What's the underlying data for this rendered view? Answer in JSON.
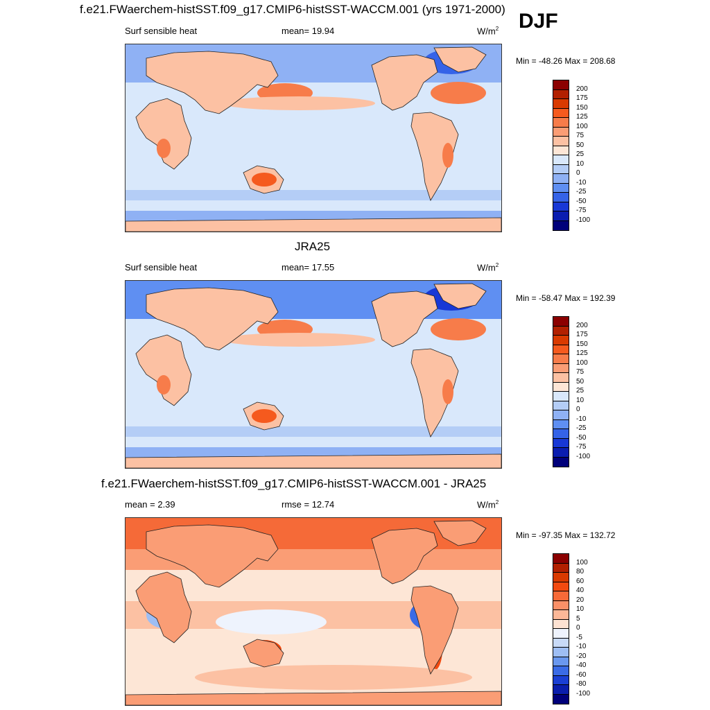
{
  "season": "DJF",
  "panels": [
    {
      "title": "f.e21.FWaerchem-histSST.f09_g17.CMIP6-histSST-WACCM.001 (yrs 1971-2000)",
      "left_label": "Surf sensible heat",
      "center_label": "mean=  19.94",
      "units": "W/m",
      "units_sup": "2",
      "minmax": "Min = -48.26 Max = 208.68",
      "colorbar": {
        "labels": [
          "200",
          "175",
          "150",
          "125",
          "100",
          "75",
          "50",
          "25",
          "10",
          "0",
          "-10",
          "-25",
          "-50",
          "-75",
          "-100"
        ],
        "colors": [
          "#8b0000",
          "#b22000",
          "#d93a00",
          "#f55a1e",
          "#f77c4a",
          "#fa9d75",
          "#fcc1a3",
          "#fde6d6",
          "#d9e8fb",
          "#b4cdf6",
          "#8fb1f4",
          "#5f8ff2",
          "#3563e8",
          "#1838d6",
          "#0a1db0",
          "#00007a"
        ]
      },
      "map_style": "model"
    },
    {
      "title": "JRA25",
      "left_label": "Surf sensible heat",
      "center_label": "mean=  17.55",
      "units": "W/m",
      "units_sup": "2",
      "minmax": "Min = -58.47 Max = 192.39",
      "colorbar": {
        "labels": [
          "200",
          "175",
          "150",
          "125",
          "100",
          "75",
          "50",
          "25",
          "10",
          "0",
          "-10",
          "-25",
          "-50",
          "-75",
          "-100"
        ],
        "colors": [
          "#8b0000",
          "#b22000",
          "#d93a00",
          "#f55a1e",
          "#f77c4a",
          "#fa9d75",
          "#fcc1a3",
          "#fde6d6",
          "#d9e8fb",
          "#b4cdf6",
          "#8fb1f4",
          "#5f8ff2",
          "#3563e8",
          "#1838d6",
          "#0a1db0",
          "#00007a"
        ]
      },
      "map_style": "obs"
    },
    {
      "title": "f.e21.FWaerchem-histSST.f09_g17.CMIP6-histSST-WACCM.001 - JRA25",
      "left_label": "mean =   2.39",
      "center_label": "rmse =  12.74",
      "units": "W/m",
      "units_sup": "2",
      "minmax": "Min = -97.35 Max = 132.72",
      "colorbar": {
        "labels": [
          "100",
          "80",
          "60",
          "40",
          "20",
          "10",
          "5",
          "0",
          "-5",
          "-10",
          "-20",
          "-40",
          "-60",
          "-80",
          "-100"
        ],
        "colors": [
          "#8b0000",
          "#b22000",
          "#d93a00",
          "#f24a10",
          "#f76a38",
          "#fa9068",
          "#fcb898",
          "#fde2d2",
          "#eef3fd",
          "#c8daf8",
          "#9ebef4",
          "#6a98ef",
          "#3a6be6",
          "#1a3fd4",
          "#0a1eac",
          "#00007a"
        ]
      },
      "map_style": "diff"
    }
  ]
}
